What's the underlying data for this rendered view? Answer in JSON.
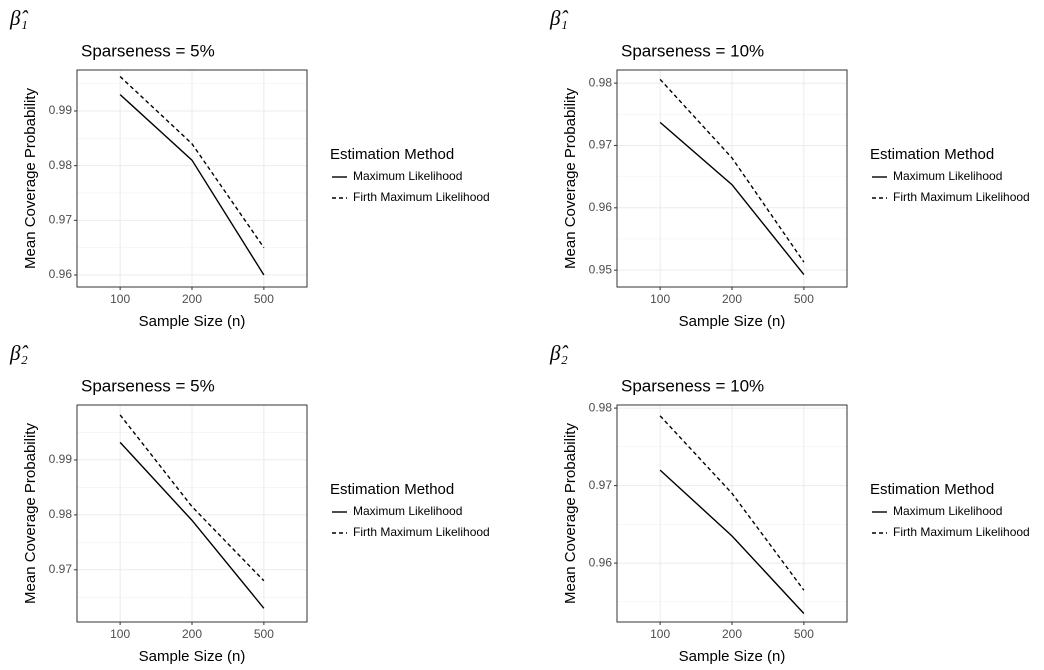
{
  "chart_data": [
    {
      "type": "line",
      "label": "β̂₁",
      "title": "Sparseness = 5%",
      "x_label": "Sample Size (n)",
      "y_label": "Mean Coverage Probability",
      "legend_title": "Estimation Method",
      "categories": [
        "100",
        "200",
        "500"
      ],
      "series": [
        {
          "name": "Maximum Likelihood",
          "color": "#000000",
          "dash": "solid",
          "values": [
            0.993,
            0.981,
            0.96
          ]
        },
        {
          "name": "Firth Maximum Likelihood",
          "color": "#000000",
          "dash": "dashed",
          "values": [
            0.9963,
            0.984,
            0.965
          ]
        }
      ],
      "ylim": [
        0.9578,
        0.9975
      ],
      "yticks": [
        0.96,
        0.97,
        0.98,
        0.99
      ],
      "grid": true
    },
    {
      "type": "line",
      "label": "β̂₁",
      "title": "Sparseness = 10%",
      "x_label": "Sample Size (n)",
      "y_label": "Mean Coverage Probability",
      "legend_title": "Estimation Method",
      "categories": [
        "100",
        "200",
        "500"
      ],
      "series": [
        {
          "name": "Maximum Likelihood",
          "color": "#000000",
          "dash": "solid",
          "values": [
            0.9737,
            0.9637,
            0.9493
          ]
        },
        {
          "name": "Firth Maximum Likelihood",
          "color": "#000000",
          "dash": "dashed",
          "values": [
            0.9806,
            0.968,
            0.9513
          ]
        }
      ],
      "ylim": [
        0.9473,
        0.9821
      ],
      "yticks": [
        0.95,
        0.96,
        0.97,
        0.98
      ],
      "grid": true
    },
    {
      "type": "line",
      "label": "β̂₂",
      "title": "Sparseness = 5%",
      "x_label": "Sample Size (n)",
      "y_label": "Mean Coverage Probability",
      "legend_title": "Estimation Method",
      "categories": [
        "100",
        "200",
        "500"
      ],
      "series": [
        {
          "name": "Maximum Likelihood",
          "color": "#000000",
          "dash": "solid",
          "values": [
            0.9932,
            0.979,
            0.963
          ]
        },
        {
          "name": "Firth Maximum Likelihood",
          "color": "#000000",
          "dash": "dashed",
          "values": [
            0.9982,
            0.9815,
            0.968
          ]
        }
      ],
      "ylim": [
        0.9605,
        1.0
      ],
      "yticks": [
        0.97,
        0.98,
        0.99
      ],
      "grid": true
    },
    {
      "type": "line",
      "label": "β̂₂",
      "title": "Sparseness = 10%",
      "x_label": "Sample Size (n)",
      "y_label": "Mean Coverage Probability",
      "legend_title": "Estimation Method",
      "categories": [
        "100",
        "200",
        "500"
      ],
      "series": [
        {
          "name": "Maximum Likelihood",
          "color": "#000000",
          "dash": "solid",
          "values": [
            0.972,
            0.9635,
            0.9535
          ]
        },
        {
          "name": "Firth Maximum Likelihood",
          "color": "#000000",
          "dash": "dashed",
          "values": [
            0.979,
            0.969,
            0.9565
          ]
        }
      ],
      "ylim": [
        0.9524,
        0.9804
      ],
      "yticks": [
        0.96,
        0.97,
        0.98
      ],
      "grid": true
    }
  ]
}
